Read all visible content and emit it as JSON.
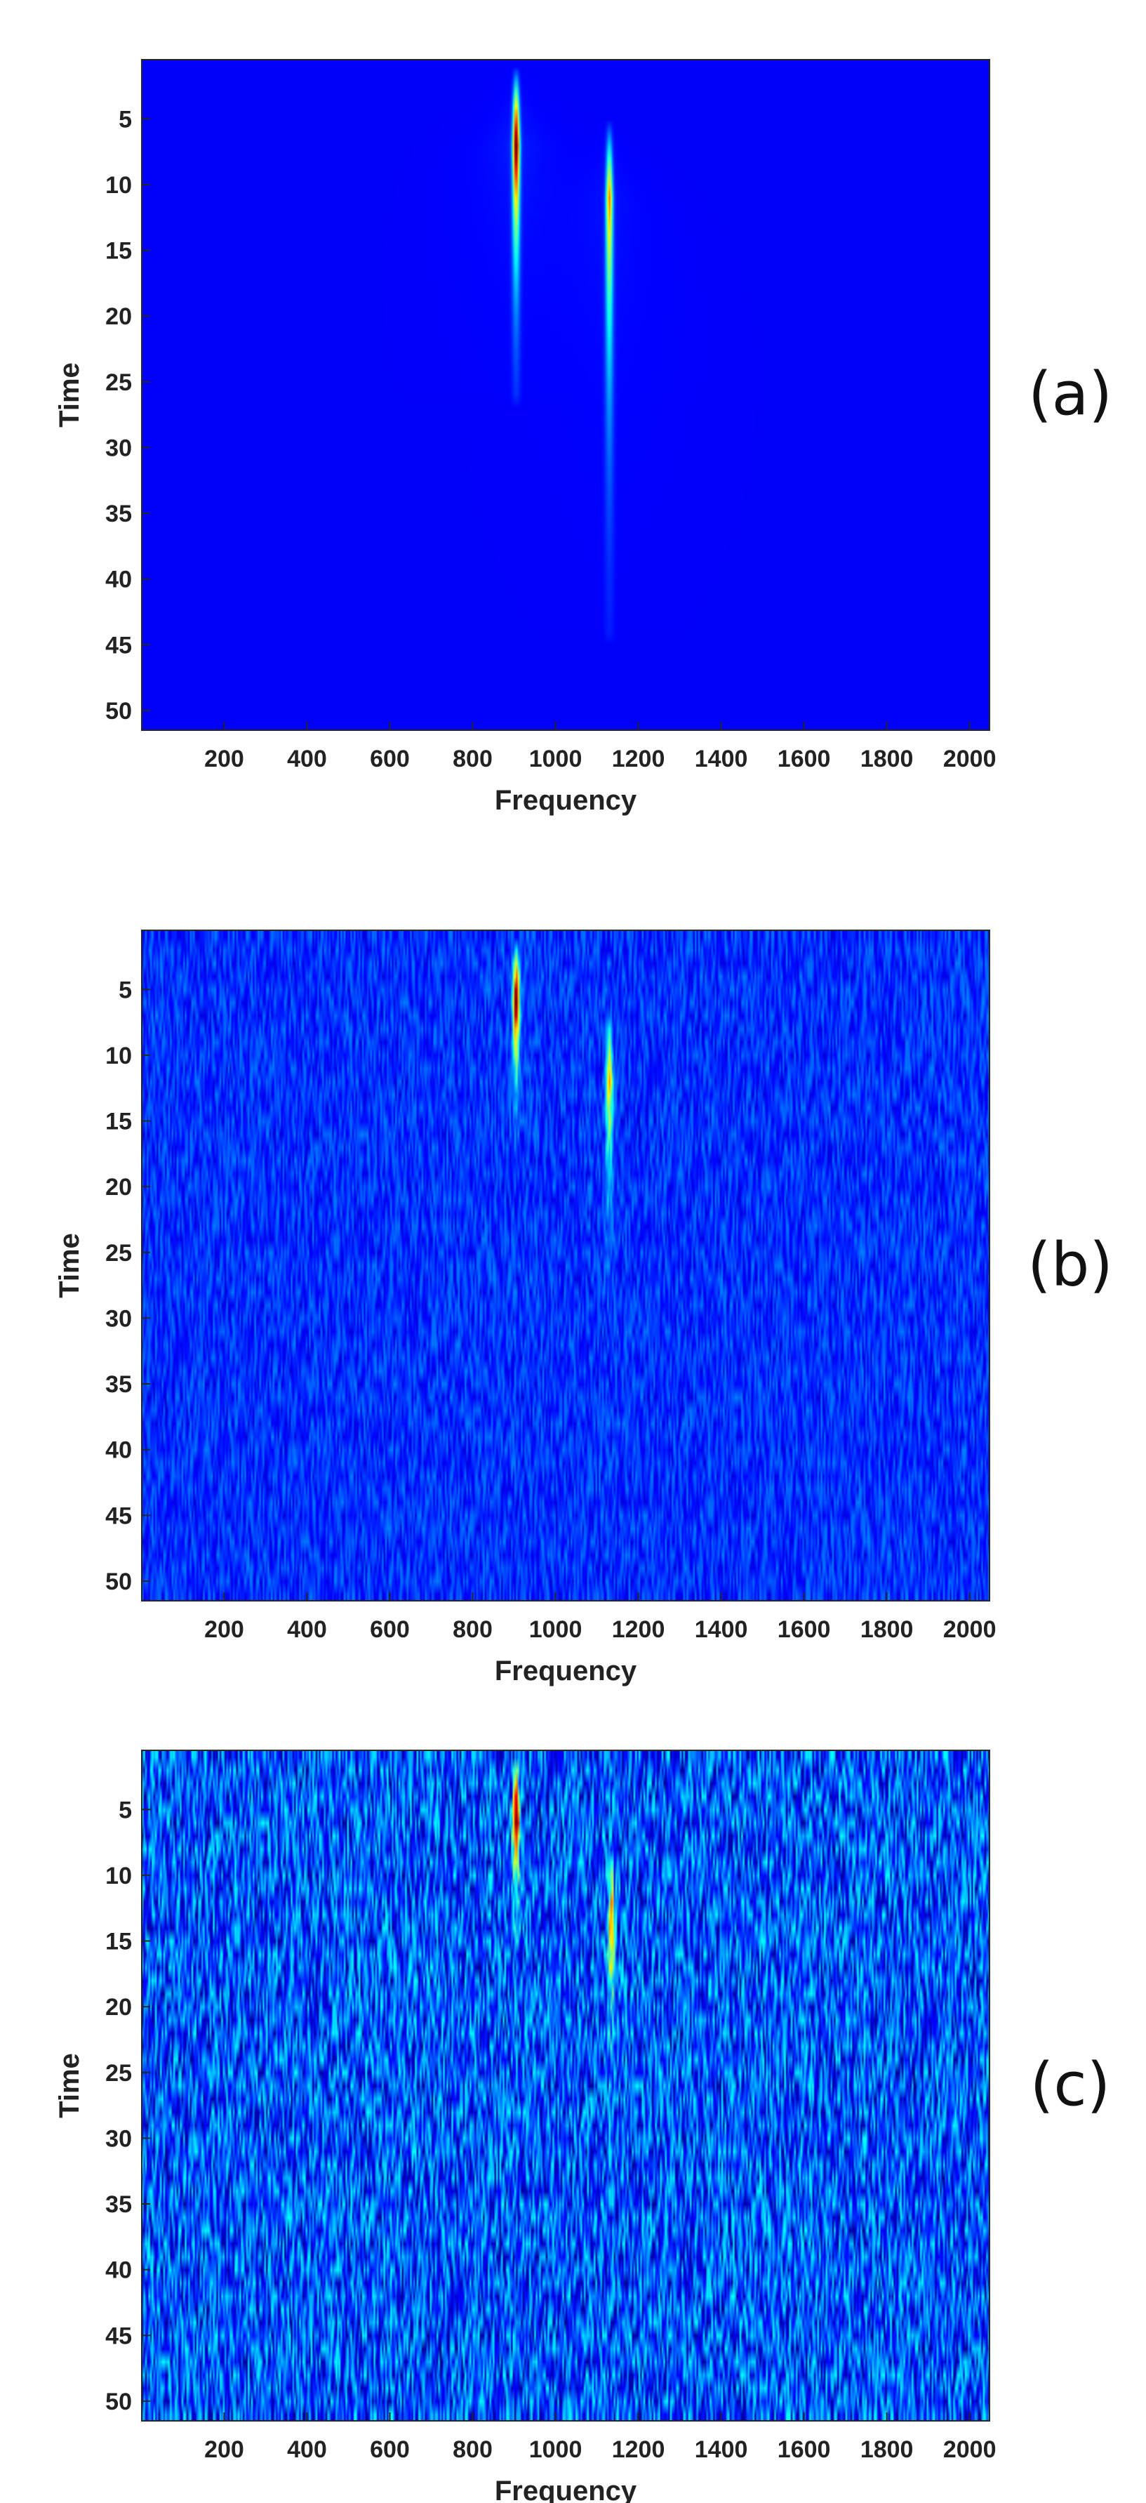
{
  "colors": {
    "colormap": "jet",
    "background_noise": "#00008f",
    "axis": "#262626"
  },
  "chart_data": [
    {
      "type": "heatmap",
      "panel_label": "(a)",
      "xlabel": "Frequency",
      "ylabel": "Time",
      "xlim": [
        1,
        2048
      ],
      "ylim": [
        1,
        51
      ],
      "y_reversed": true,
      "xticks": [
        200,
        400,
        600,
        800,
        1000,
        1200,
        1400,
        1600,
        1800,
        2000
      ],
      "yticks": [
        5,
        10,
        15,
        20,
        25,
        30,
        35,
        40,
        45,
        50
      ],
      "noise_level": 0.0,
      "baseline": 0.12,
      "components": [
        {
          "frequency": 905,
          "time_start": 2,
          "peak_time": 7,
          "time_end": 26,
          "peak": 1.0
        },
        {
          "frequency": 1130,
          "time_start": 6,
          "peak_time": 11,
          "time_end": 44,
          "peak": 0.62
        }
      ]
    },
    {
      "type": "heatmap",
      "panel_label": "(b)",
      "xlabel": "Frequency",
      "ylabel": "Time",
      "xlim": [
        1,
        2048
      ],
      "ylim": [
        1,
        51
      ],
      "y_reversed": true,
      "xticks": [
        200,
        400,
        600,
        800,
        1000,
        1200,
        1400,
        1600,
        1800,
        2000
      ],
      "yticks": [
        5,
        10,
        15,
        20,
        25,
        30,
        35,
        40,
        45,
        50
      ],
      "noise_level": 0.08,
      "baseline": 0.17,
      "components": [
        {
          "frequency": 905,
          "time_start": 2,
          "peak_time": 6,
          "time_end": 17,
          "peak": 1.0
        },
        {
          "frequency": 1130,
          "time_start": 7,
          "peak_time": 12,
          "time_end": 29,
          "peak": 0.58
        }
      ]
    },
    {
      "type": "heatmap",
      "panel_label": "(c)",
      "xlabel": "Frequency",
      "ylabel": "Time",
      "xlim": [
        1,
        2048
      ],
      "ylim": [
        1,
        51
      ],
      "y_reversed": true,
      "xticks": [
        200,
        400,
        600,
        800,
        1000,
        1200,
        1400,
        1600,
        1800,
        2000
      ],
      "yticks": [
        5,
        10,
        15,
        20,
        25,
        30,
        35,
        40,
        45,
        50
      ],
      "noise_level": 0.18,
      "baseline": 0.2,
      "components": [
        {
          "frequency": 905,
          "time_start": 2,
          "peak_time": 6,
          "time_end": 16,
          "peak": 1.0
        },
        {
          "frequency": 1135,
          "time_start": 8,
          "peak_time": 14,
          "time_end": 29,
          "peak": 0.6
        }
      ]
    }
  ]
}
